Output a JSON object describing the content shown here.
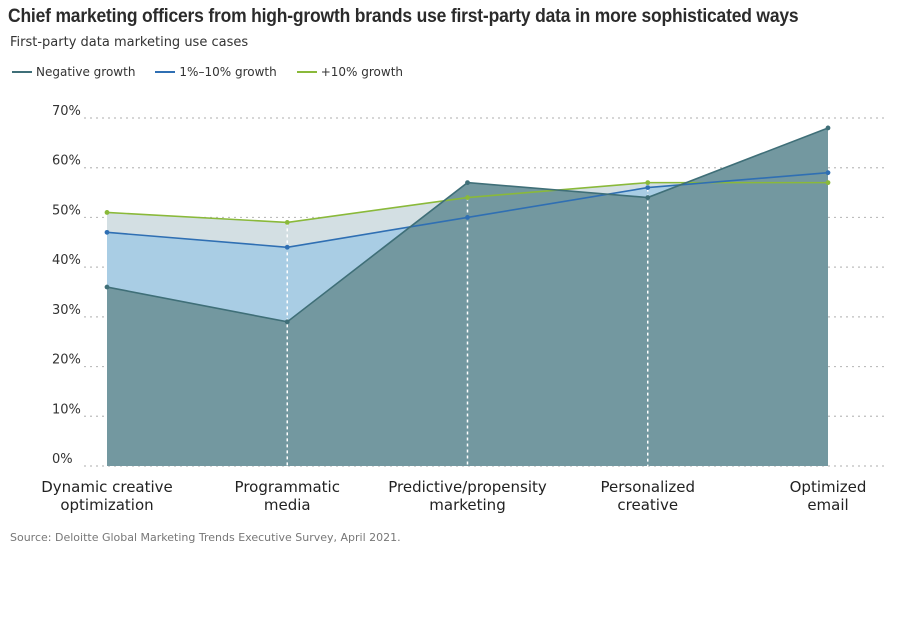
{
  "title": "Chief marketing officers from high-growth brands use first-party data in more sophisticated ways",
  "subtitle": "First-party data marketing use cases",
  "source": "Source: Deloitte Global Marketing Trends Executive Survey, April 2021.",
  "colors": {
    "negative_line": "#3f6f78",
    "negative_fill": "#7398a0",
    "mid_line": "#2f6fb3",
    "mid_fill": "#a9cde4",
    "high_line": "#8ab93a",
    "high_fill": "#d3dfe3",
    "grid": "#bdbdbd",
    "vline": "#ffffff"
  },
  "chart_data": {
    "type": "area",
    "categories": [
      [
        "Dynamic creative",
        "optimization"
      ],
      [
        "Programmatic",
        "media"
      ],
      [
        "Predictive/propensity",
        "marketing"
      ],
      [
        "Personalized",
        "creative"
      ],
      [
        "Optimized",
        "email"
      ]
    ],
    "yticks": [
      "0%",
      "10%",
      "20%",
      "30%",
      "40%",
      "50%",
      "60%",
      "70%"
    ],
    "ylim": [
      0,
      70
    ],
    "grid": true,
    "legend_position": "top-left",
    "series": [
      {
        "name": "Negative growth",
        "values": [
          36,
          29,
          57,
          54,
          68
        ]
      },
      {
        "name": "1%–10% growth",
        "values": [
          47,
          44,
          50,
          56,
          59
        ]
      },
      {
        "name": "+10% growth",
        "values": [
          51,
          49,
          54,
          57,
          57
        ]
      }
    ]
  }
}
